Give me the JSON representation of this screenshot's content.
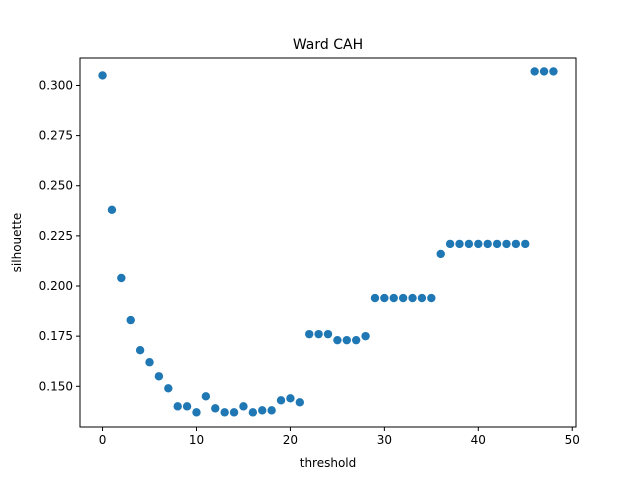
{
  "chart_data": {
    "type": "scatter",
    "title": "Ward CAH",
    "xlabel": "threshold",
    "ylabel": "silhouette",
    "xlim": [
      -2.4,
      50.4
    ],
    "ylim": [
      0.1297,
      0.3137
    ],
    "xticks": [
      0,
      10,
      20,
      30,
      40,
      50
    ],
    "xtick_labels": [
      "0",
      "10",
      "20",
      "30",
      "40",
      "50"
    ],
    "yticks": [
      0.15,
      0.175,
      0.2,
      0.225,
      0.25,
      0.275,
      0.3
    ],
    "ytick_labels": [
      "0.150",
      "0.175",
      "0.200",
      "0.225",
      "0.250",
      "0.275",
      "0.300"
    ],
    "grid": false,
    "marker_color": "#1f77b4",
    "series": [
      {
        "x": [
          0,
          1,
          2,
          3,
          4,
          5,
          6,
          7,
          8,
          9,
          10,
          11,
          12,
          13,
          14,
          15,
          16,
          17,
          18,
          19,
          20,
          21,
          22,
          23,
          24,
          25,
          26,
          27,
          28,
          29,
          30,
          31,
          32,
          33,
          34,
          35,
          36,
          37,
          38,
          39,
          40,
          41,
          42,
          43,
          44,
          45,
          46,
          47,
          48
        ],
        "y": [
          0.305,
          0.238,
          0.204,
          0.183,
          0.168,
          0.162,
          0.155,
          0.149,
          0.14,
          0.14,
          0.137,
          0.145,
          0.139,
          0.137,
          0.137,
          0.14,
          0.137,
          0.138,
          0.138,
          0.143,
          0.144,
          0.142,
          0.176,
          0.176,
          0.176,
          0.173,
          0.173,
          0.173,
          0.175,
          0.194,
          0.194,
          0.194,
          0.194,
          0.194,
          0.194,
          0.194,
          0.216,
          0.221,
          0.221,
          0.221,
          0.221,
          0.221,
          0.221,
          0.221,
          0.221,
          0.221,
          0.307,
          0.307,
          0.307
        ]
      }
    ]
  }
}
